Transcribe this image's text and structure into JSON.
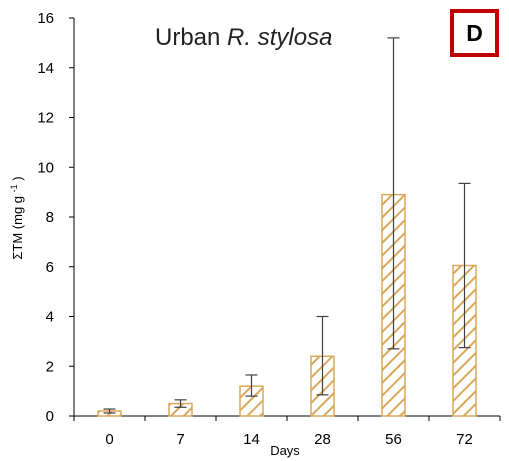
{
  "chart_data": {
    "type": "bar",
    "title_prefix": "Urban ",
    "title_species": "R. stylosa",
    "panel_label": "D",
    "xlabel": "Days",
    "ylabel_main": "ΣTM (mg g",
    "ylabel_sup": "-1",
    "ylabel_end": ")",
    "categories": [
      "0",
      "7",
      "14",
      "28",
      "56",
      "72"
    ],
    "values": [
      0.2,
      0.5,
      1.2,
      2.4,
      8.9,
      6.05
    ],
    "error_low": [
      0.12,
      0.35,
      0.8,
      0.85,
      2.7,
      2.75
    ],
    "error_high": [
      0.28,
      0.65,
      1.65,
      4.0,
      15.2,
      9.35
    ],
    "ylim": [
      0,
      16
    ],
    "yticks": [
      "0",
      "2",
      "4",
      "6",
      "8",
      "10",
      "12",
      "14",
      "16"
    ],
    "grid": false,
    "colors": {
      "bar_hatch": "#d9a85a",
      "bar_fill": "#ffffff",
      "error_bar": "#404040",
      "axis": "#000000",
      "panel_border": "#c00000"
    }
  }
}
